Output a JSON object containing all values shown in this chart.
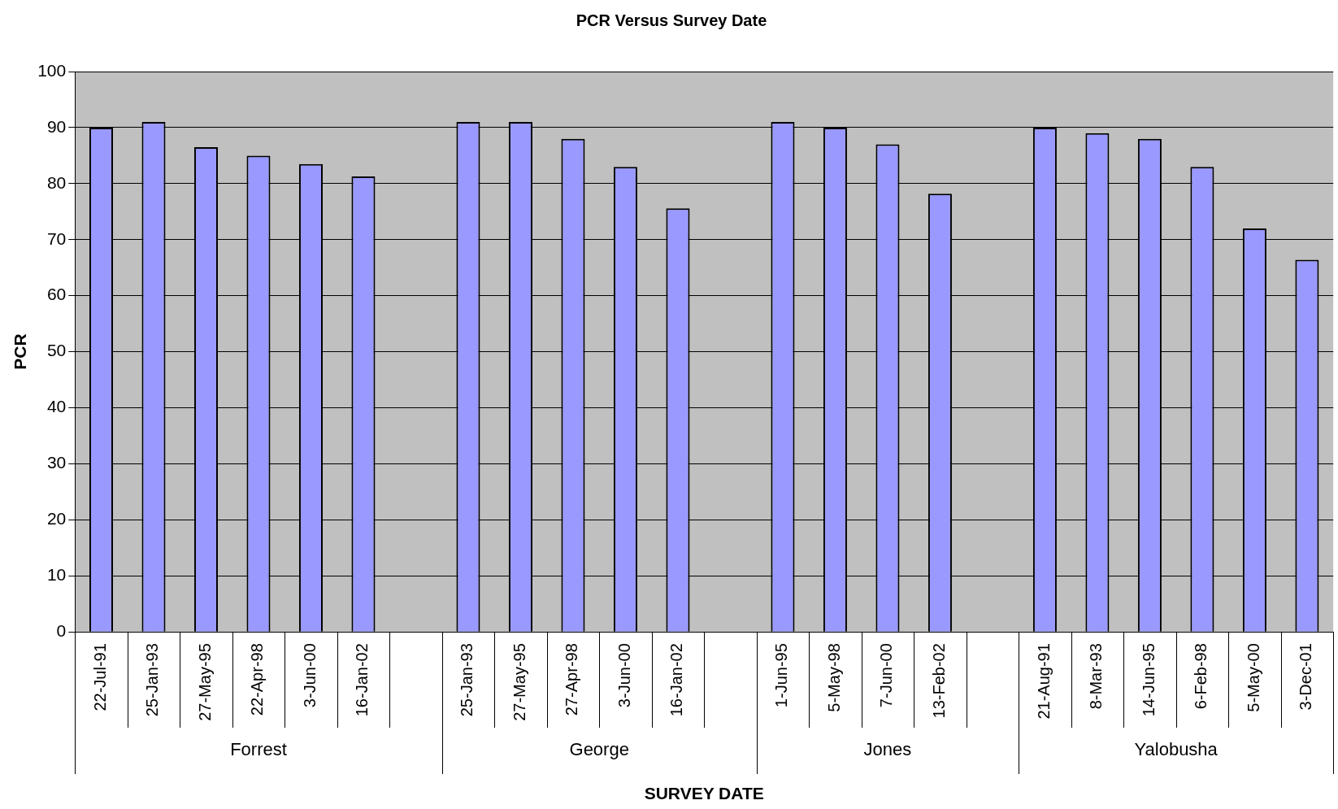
{
  "chart_data": {
    "type": "bar",
    "title": "PCR Versus Survey Date",
    "xlabel": "SURVEY DATE",
    "ylabel": "PCR",
    "categories": [
      "22-Jul-91",
      "25-Jan-93",
      "27-May-95",
      "22-Apr-98",
      "3-Jun-00",
      "16-Jan-02",
      null,
      "25-Jan-93",
      "27-May-95",
      "27-Apr-98",
      "3-Jun-00",
      "16-Jan-02",
      null,
      "1-Jun-95",
      "5-May-98",
      "7-Jun-00",
      "13-Feb-02",
      null,
      "21-Aug-91",
      "8-Mar-93",
      "14-Jun-95",
      "6-Feb-98",
      "5-May-00",
      "3-Dec-01"
    ],
    "values": [
      90,
      91,
      86.5,
      85,
      83.5,
      81.3,
      null,
      91,
      91,
      88,
      83,
      75.6,
      null,
      91,
      90,
      87,
      78.2,
      null,
      90,
      89,
      88,
      83,
      72,
      66.4
    ],
    "color": "#9999ff",
    "annotations": [
      "Forrest",
      "George",
      "Jones",
      "Yalobusha"
    ],
    "ylim": [
      0,
      100
    ],
    "yticks": [
      0,
      10,
      20,
      30,
      40,
      50,
      60,
      70,
      80,
      90,
      100
    ],
    "grid": "y",
    "legend": false
  }
}
